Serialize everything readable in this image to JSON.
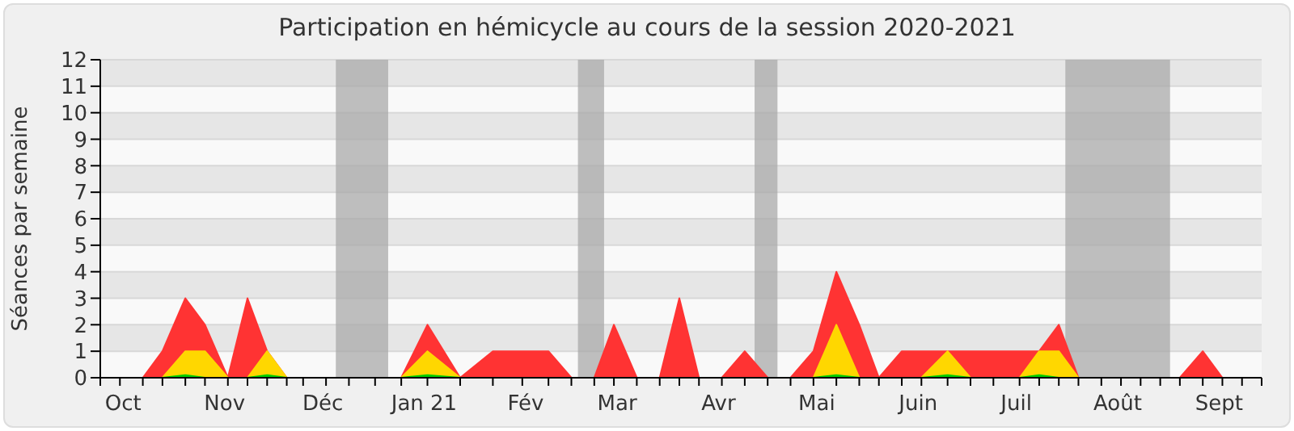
{
  "chart_data": {
    "type": "area",
    "title": "Participation en hémicycle au cours de la session 2020-2021",
    "ylabel": "Séances par semaine",
    "x": [
      "2020-09-24",
      "2020-09-30",
      "2020-10-07",
      "2020-10-13",
      "2020-10-20",
      "2020-10-26",
      "2020-11-02",
      "2020-11-08",
      "2020-11-14",
      "2020-11-20",
      "2020-11-25",
      "2020-12-02",
      "2020-12-09",
      "2020-12-17",
      "2020-12-25",
      "2021-01-02",
      "2021-01-12",
      "2021-01-22",
      "2021-01-31",
      "2021-02-08",
      "2021-02-15",
      "2021-02-22",
      "2021-02-28",
      "2021-03-07",
      "2021-03-14",
      "2021-03-20",
      "2021-03-26",
      "2021-04-02",
      "2021-04-09",
      "2021-04-16",
      "2021-04-23",
      "2021-04-30",
      "2021-05-07",
      "2021-05-14",
      "2021-05-20",
      "2021-05-27",
      "2021-06-02",
      "2021-06-10",
      "2021-06-17",
      "2021-06-24",
      "2021-07-02",
      "2021-07-08",
      "2021-07-14",
      "2021-07-20",
      "2021-07-27",
      "2021-08-02",
      "2021-08-08",
      "2021-08-14",
      "2021-08-20",
      "2021-08-27",
      "2021-09-02",
      "2021-09-08",
      "2021-09-14"
    ],
    "series": [
      {
        "color": "#ff3333",
        "values": [
          0,
          0,
          0,
          1,
          3,
          2,
          0,
          3,
          1,
          0,
          0,
          0,
          0,
          0,
          0,
          2,
          0,
          1,
          1,
          1,
          0,
          0,
          2,
          0,
          0,
          3,
          0,
          0,
          1,
          0,
          0,
          1,
          4,
          2,
          0,
          1,
          1,
          1,
          1,
          1,
          1,
          1,
          2,
          0,
          0,
          0,
          0,
          0,
          0,
          1,
          0,
          0,
          0
        ]
      },
      {
        "color": "#ffd700",
        "values": [
          0,
          0,
          0,
          0,
          1,
          1,
          0,
          0,
          1,
          0,
          0,
          0,
          0,
          0,
          0,
          1,
          0,
          0,
          0,
          0,
          0,
          0,
          0,
          0,
          0,
          0,
          0,
          0,
          0,
          0,
          0,
          0,
          2,
          0,
          0,
          0,
          0,
          1,
          0,
          0,
          0,
          1,
          1,
          0,
          0,
          0,
          0,
          0,
          0,
          0,
          0,
          0,
          0
        ]
      },
      {
        "color": "#00cc00",
        "values": [
          0,
          0,
          0,
          0,
          0.1,
          0,
          0,
          0,
          0.1,
          0,
          0,
          0,
          0,
          0,
          0,
          0.1,
          0,
          0,
          0,
          0,
          0,
          0,
          0,
          0,
          0,
          0,
          0,
          0,
          0,
          0,
          0,
          0,
          0.1,
          0,
          0,
          0,
          0,
          0.1,
          0,
          0,
          0,
          0.1,
          0,
          0,
          0,
          0,
          0,
          0,
          0,
          0,
          0,
          0,
          0
        ]
      }
    ],
    "xlim": [
      "2020-09-24",
      "2021-09-14"
    ],
    "xticks": [
      {
        "value": "2020-09-24",
        "label": null
      },
      {
        "value": "2020-09-30",
        "label": null
      },
      {
        "value": "2020-10-07",
        "label": null
      },
      {
        "value": "2020-10-13",
        "label": null
      },
      {
        "value": "2020-10-20",
        "label": null
      },
      {
        "value": "2020-10-26",
        "label": null
      },
      {
        "value": "2020-11-02",
        "label": null
      },
      {
        "value": "2020-11-08",
        "label": null
      },
      {
        "value": "2020-11-14",
        "label": null
      },
      {
        "value": "2020-11-20",
        "label": null
      },
      {
        "value": "2020-11-25",
        "label": null
      },
      {
        "value": "2020-12-02",
        "label": null
      },
      {
        "value": "2020-12-09",
        "label": null
      },
      {
        "value": "2020-12-17",
        "label": null
      },
      {
        "value": "2020-12-25",
        "label": null
      },
      {
        "value": "2021-01-02",
        "label": null
      },
      {
        "value": "2021-01-12",
        "label": null
      },
      {
        "value": "2021-01-22",
        "label": null
      },
      {
        "value": "2021-01-31",
        "label": null
      },
      {
        "value": "2021-02-08",
        "label": null
      },
      {
        "value": "2021-02-15",
        "label": null
      },
      {
        "value": "2021-02-22",
        "label": null
      },
      {
        "value": "2021-02-28",
        "label": null
      },
      {
        "value": "2021-03-07",
        "label": null
      },
      {
        "value": "2021-03-14",
        "label": null
      },
      {
        "value": "2021-03-20",
        "label": null
      },
      {
        "value": "2021-03-26",
        "label": null
      },
      {
        "value": "2021-04-02",
        "label": null
      },
      {
        "value": "2021-04-09",
        "label": null
      },
      {
        "value": "2021-04-16",
        "label": null
      },
      {
        "value": "2021-04-23",
        "label": null
      },
      {
        "value": "2021-04-30",
        "label": null
      },
      {
        "value": "2021-05-07",
        "label": null
      },
      {
        "value": "2021-05-14",
        "label": null
      },
      {
        "value": "2021-05-20",
        "label": null
      },
      {
        "value": "2021-05-27",
        "label": null
      },
      {
        "value": "2021-06-02",
        "label": null
      },
      {
        "value": "2021-06-10",
        "label": null
      },
      {
        "value": "2021-06-17",
        "label": null
      },
      {
        "value": "2021-06-24",
        "label": null
      },
      {
        "value": "2021-07-02",
        "label": null
      },
      {
        "value": "2021-07-08",
        "label": null
      },
      {
        "value": "2021-07-14",
        "label": null
      },
      {
        "value": "2021-07-20",
        "label": null
      },
      {
        "value": "2021-07-27",
        "label": null
      },
      {
        "value": "2021-08-02",
        "label": null
      },
      {
        "value": "2021-08-08",
        "label": null
      },
      {
        "value": "2021-08-14",
        "label": null
      },
      {
        "value": "2021-08-20",
        "label": null
      },
      {
        "value": "2021-08-27",
        "label": null
      },
      {
        "value": "2021-09-02",
        "label": null
      },
      {
        "value": "2021-09-08",
        "label": null
      },
      {
        "value": "2021-09-14",
        "label": null
      },
      {
        "value": "2020-10-01",
        "label": "Oct"
      },
      {
        "value": "2020-11-01",
        "label": "Nov"
      },
      {
        "value": "2020-12-01",
        "label": "Déc"
      },
      {
        "value": "2021-01-01",
        "label": "Jan 21"
      },
      {
        "value": "2021-02-01",
        "label": "Fév"
      },
      {
        "value": "2021-03-01",
        "label": "Mar"
      },
      {
        "value": "2021-04-01",
        "label": "Avr"
      },
      {
        "value": "2021-05-01",
        "label": "Mai"
      },
      {
        "value": "2021-06-01",
        "label": "Juin"
      },
      {
        "value": "2021-07-01",
        "label": "Juil"
      },
      {
        "value": "2021-08-01",
        "label": "Août"
      },
      {
        "value": "2021-09-01",
        "label": "Sept"
      }
    ],
    "ylim": [
      0,
      12
    ],
    "yticks": [
      0,
      1,
      2,
      3,
      4,
      5,
      6,
      7,
      8,
      9,
      10,
      11,
      12
    ],
    "bands": [
      {
        "axis": "x",
        "from": "2020-12-05",
        "to": "2020-12-21",
        "color": "#aaaaaa"
      },
      {
        "axis": "x",
        "from": "2021-02-17",
        "to": "2021-02-25",
        "color": "#aaaaaa"
      },
      {
        "axis": "x",
        "from": "2021-04-12",
        "to": "2021-04-19",
        "color": "#aaaaaa"
      },
      {
        "axis": "x",
        "from": "2021-07-16",
        "to": "2021-08-17",
        "color": "#aaaaaa"
      }
    ],
    "grid": "y"
  }
}
